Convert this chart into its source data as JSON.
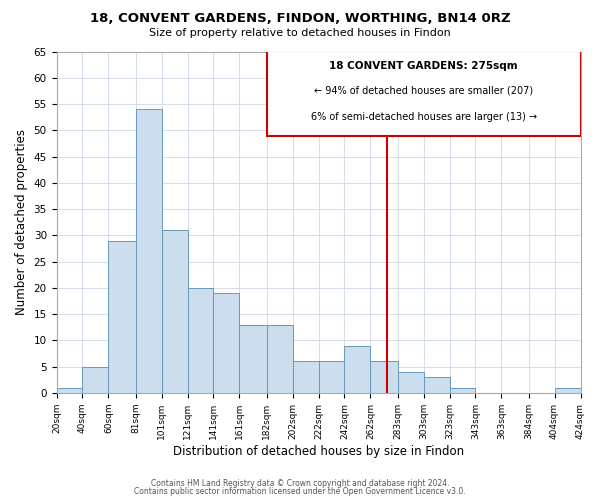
{
  "title": "18, CONVENT GARDENS, FINDON, WORTHING, BN14 0RZ",
  "subtitle": "Size of property relative to detached houses in Findon",
  "xlabel": "Distribution of detached houses by size in Findon",
  "ylabel": "Number of detached properties",
  "bins": [
    "20sqm",
    "40sqm",
    "60sqm",
    "81sqm",
    "101sqm",
    "121sqm",
    "141sqm",
    "161sqm",
    "182sqm",
    "202sqm",
    "222sqm",
    "242sqm",
    "262sqm",
    "283sqm",
    "303sqm",
    "323sqm",
    "343sqm",
    "363sqm",
    "384sqm",
    "404sqm",
    "424sqm"
  ],
  "counts": [
    1,
    5,
    29,
    54,
    31,
    20,
    19,
    13,
    13,
    6,
    6,
    9,
    6,
    4,
    3,
    1,
    0,
    0,
    0,
    1
  ],
  "bar_color": "#ccdded",
  "bar_edge_color": "#6699bb",
  "property_line_x": 275,
  "property_line_color": "#cc0000",
  "ylim": [
    0,
    65
  ],
  "yticks": [
    0,
    5,
    10,
    15,
    20,
    25,
    30,
    35,
    40,
    45,
    50,
    55,
    60,
    65
  ],
  "annotation_title": "18 CONVENT GARDENS: 275sqm",
  "annotation_line1": "← 94% of detached houses are smaller (207)",
  "annotation_line2": "6% of semi-detached houses are larger (13) →",
  "footer1": "Contains HM Land Registry data © Crown copyright and database right 2024.",
  "footer2": "Contains public sector information licensed under the Open Government Licence v3.0.",
  "background_color": "#ffffff"
}
